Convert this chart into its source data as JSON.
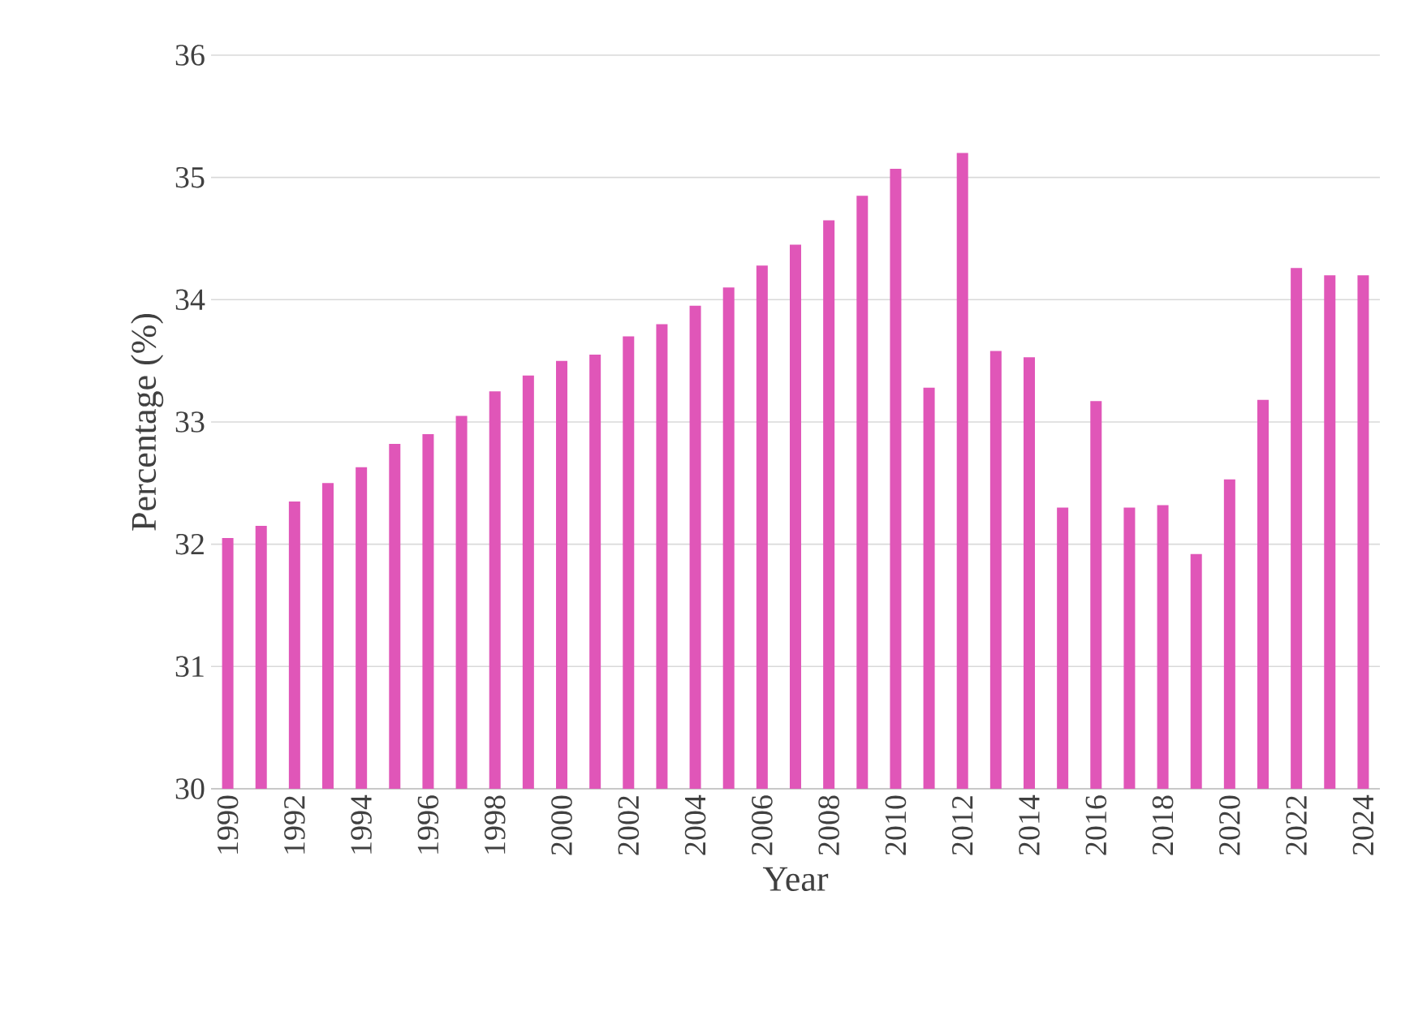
{
  "chart_data": {
    "type": "bar",
    "xlabel": "Year",
    "ylabel": "Percentage (%)",
    "color": "#e056b8",
    "categories": [
      "1990",
      null,
      "1992",
      null,
      "1994",
      null,
      "1996",
      null,
      "1998",
      null,
      "2000",
      null,
      "2002",
      null,
      "2004",
      null,
      "2006",
      null,
      "2008",
      null,
      "2010",
      null,
      "2012",
      null,
      "2014",
      null,
      "2016",
      null,
      "2018",
      null,
      "2020",
      null,
      "2022",
      null,
      "2024"
    ],
    "values": [
      32.05,
      32.15,
      32.35,
      32.5,
      32.63,
      32.82,
      32.9,
      33.05,
      33.25,
      33.38,
      33.5,
      33.55,
      33.7,
      33.8,
      33.95,
      34.1,
      34.28,
      34.45,
      34.65,
      34.85,
      35.07,
      33.28,
      35.2,
      33.58,
      33.53,
      32.3,
      33.17,
      32.3,
      32.32,
      31.92,
      32.53,
      33.18,
      34.26,
      34.2,
      34.2
    ],
    "ylim": [
      30,
      36
    ],
    "yticks": [
      30,
      31,
      32,
      33,
      34,
      35,
      36
    ],
    "grid": "y"
  }
}
